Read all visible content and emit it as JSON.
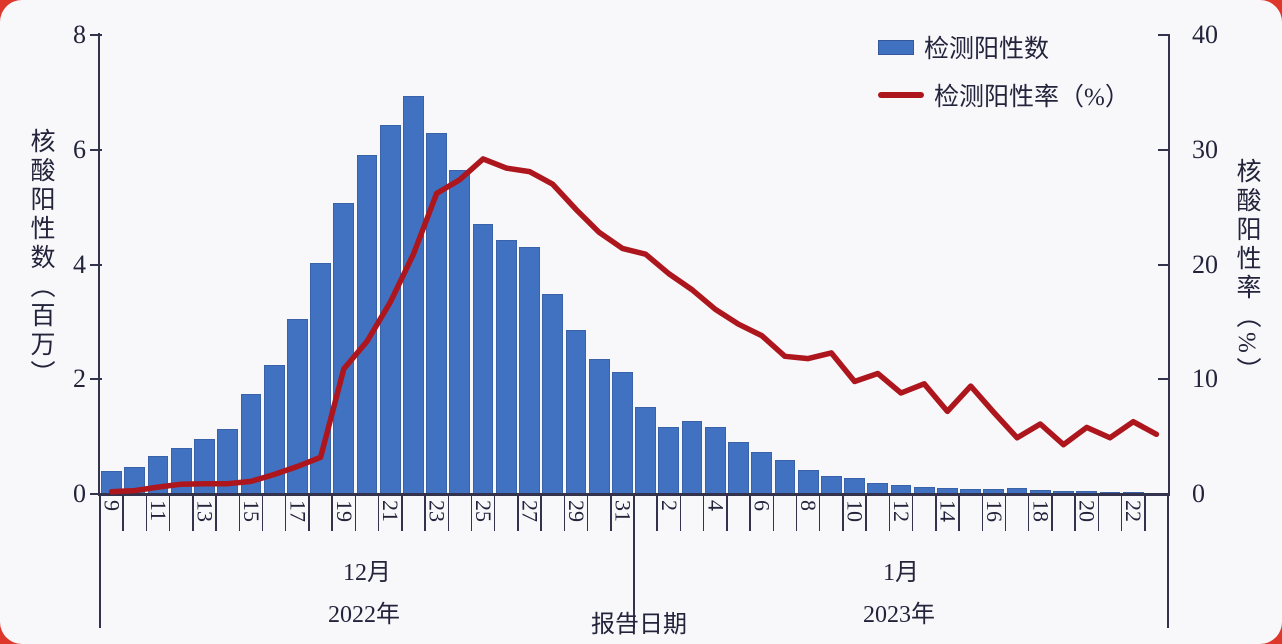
{
  "page": {
    "background_color": "#DE372B",
    "card_color": "#F8F8FB"
  },
  "legend": [
    {
      "label": "检测阳性数",
      "type": "bar",
      "color": "#4171C1"
    },
    {
      "label": "检测阳性率（%）",
      "type": "line",
      "color": "#AD161D"
    }
  ],
  "chart_data": {
    "type": "bar+line",
    "title": "",
    "left_axis": {
      "label": "核酸阳性数（百万）",
      "min": 0,
      "max": 8,
      "ticks": [
        0,
        2,
        4,
        6,
        8
      ]
    },
    "right_axis": {
      "label": "核酸阳性率（%）",
      "min": 0,
      "max": 40,
      "ticks": [
        0,
        10,
        20,
        30,
        40
      ]
    },
    "x_axis": {
      "label": "报告日期",
      "day_labels": [
        "9",
        "11",
        "13",
        "15",
        "17",
        "19",
        "21",
        "23",
        "25",
        "27",
        "29",
        "31",
        "2",
        "4",
        "6",
        "8",
        "10",
        "12",
        "14",
        "16",
        "18",
        "20",
        "22"
      ],
      "groups": [
        {
          "month": "12月",
          "year": "2022年"
        },
        {
          "month": "1月",
          "year": "2023年"
        }
      ]
    },
    "days": [
      9,
      10,
      11,
      12,
      13,
      14,
      15,
      16,
      17,
      18,
      19,
      20,
      21,
      22,
      23,
      24,
      25,
      26,
      27,
      28,
      29,
      30,
      31,
      1,
      2,
      3,
      4,
      5,
      6,
      7,
      8,
      9,
      10,
      11,
      12,
      13,
      14,
      15,
      16,
      17,
      18,
      19,
      20,
      21,
      22,
      23
    ],
    "series": [
      {
        "name": "检测阳性数",
        "type": "bar",
        "axis": "left",
        "unit": "百万",
        "color": "#4171C1",
        "values": [
          0.4,
          0.47,
          0.66,
          0.81,
          0.95,
          1.13,
          1.75,
          2.25,
          3.05,
          4.03,
          5.08,
          5.9,
          6.43,
          6.94,
          6.3,
          5.65,
          4.7,
          4.42,
          4.3,
          3.48,
          2.86,
          2.35,
          2.12,
          1.52,
          1.17,
          1.28,
          1.16,
          0.9,
          0.73,
          0.6,
          0.42,
          0.32,
          0.28,
          0.2,
          0.16,
          0.13,
          0.11,
          0.09,
          0.08,
          0.1,
          0.07,
          0.06,
          0.05,
          0.04,
          0.04,
          0.02
        ]
      },
      {
        "name": "检测阳性率（%）",
        "type": "line",
        "axis": "right",
        "unit": "%",
        "color": "#AD161D",
        "values": [
          0.2,
          0.3,
          0.6,
          0.85,
          0.9,
          0.9,
          1.1,
          1.7,
          2.4,
          3.2,
          10.9,
          13.3,
          16.7,
          20.9,
          26.2,
          27.4,
          29.2,
          28.4,
          28.1,
          27.0,
          24.8,
          22.8,
          21.4,
          20.9,
          19.2,
          17.8,
          16.1,
          14.8,
          13.8,
          12.0,
          11.8,
          12.3,
          9.8,
          10.5,
          8.8,
          9.6,
          7.2,
          9.4,
          7.1,
          4.9,
          6.1,
          4.3,
          5.8,
          4.9,
          6.3,
          5.2
        ]
      }
    ]
  }
}
